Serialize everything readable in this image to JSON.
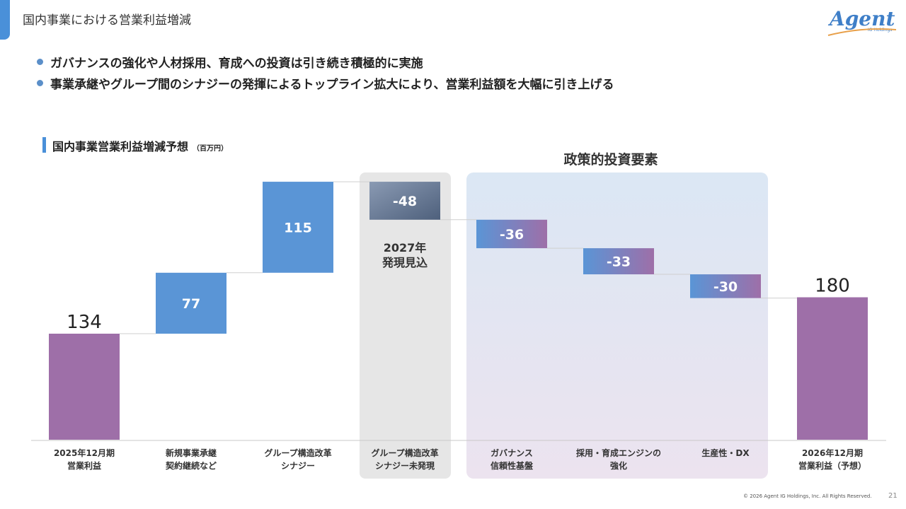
{
  "header": {
    "title": "国内事業における営業利益増減",
    "logo_text": "Agent",
    "logo_sub": "IG Holdings"
  },
  "bullets": [
    "ガバナンスの強化や人材採用、育成への投資は引き続き積極的に実施",
    "事業承継やグループ間のシナジーの発揮によるトップライン拡大により、営業利益額を大幅に引き上げる"
  ],
  "chart_heading": {
    "title": "国内事業営業利益増減予想",
    "unit": "（百万円）"
  },
  "colors": {
    "total": "#9e6fa8",
    "increase": "#5a95d6",
    "synergy_unrealized": "#4e607c",
    "policy_grad_start": "#5a95d6",
    "policy_grad_end": "#9e6fa8",
    "band_gray": "#e6e6e6",
    "band_policy": "#dbe7f4"
  },
  "footer": {
    "copyright": "© 2026 Agent IG Holdings, Inc. All Rights Reserved.",
    "page": "21"
  },
  "chart_data": {
    "type": "waterfall",
    "title": "国内事業営業利益増減予想",
    "unit": "（百万円）",
    "categories": [
      "2025年12月期\n営業利益",
      "新規事業承継\n契約継続など",
      "グループ構造改革\nシナジー",
      "グループ構造改革\nシナジー未発現",
      "ガバナンス\n信頼性基盤",
      "採用・育成エンジンの\n強化",
      "生産性・DX",
      "2026年12月期\n営業利益（予想）"
    ],
    "values": [
      134,
      77,
      115,
      -48,
      -36,
      -33,
      -30,
      180
    ],
    "labels": [
      "134",
      "77",
      "115",
      "-48",
      "-36",
      "-33",
      "-30",
      "180"
    ],
    "kinds": [
      "total",
      "increase",
      "increase",
      "synergy_unrealized",
      "policy",
      "policy",
      "policy",
      "total"
    ],
    "annotations": {
      "unrealized_band_label": "2027年\n発現見込",
      "policy_band_title": "政策的投資要素"
    }
  }
}
